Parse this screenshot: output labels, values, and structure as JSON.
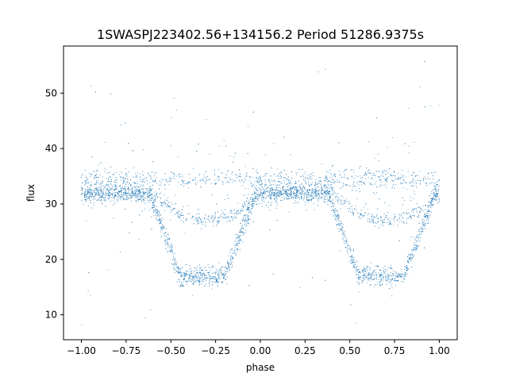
{
  "chart_data": {
    "type": "scatter",
    "title": "1SWASPJ223402.56+134156.2 Period 51286.9375s",
    "xlabel": "phase",
    "ylabel": "flux",
    "xlim": [
      -1.1,
      1.1
    ],
    "ylim": [
      5.5,
      58.5
    ],
    "xticks": [
      -1.0,
      -0.75,
      -0.5,
      -0.25,
      0.0,
      0.25,
      0.5,
      0.75,
      1.0
    ],
    "xtick_labels": [
      "−1.00",
      "−0.75",
      "−0.50",
      "−0.25",
      "0.00",
      "0.25",
      "0.50",
      "0.75",
      "1.00"
    ],
    "yticks": [
      10,
      20,
      30,
      40,
      50
    ],
    "ytick_labels": [
      "10",
      "20",
      "30",
      "40",
      "50"
    ],
    "grid": false,
    "marker_color": "#1f77b4",
    "light_curve": {
      "period_phase": 1.0,
      "baseline_flux": 32.0,
      "eclipse_ingress_start": -0.62,
      "eclipse_bottom_start": -0.45,
      "eclipse_bottom_end": -0.2,
      "eclipse_egress_end": -0.02,
      "eclipse_min_flux": 17.0,
      "secondary_track_min_flux": 27.0,
      "upper_track_flux": 34.5
    }
  }
}
